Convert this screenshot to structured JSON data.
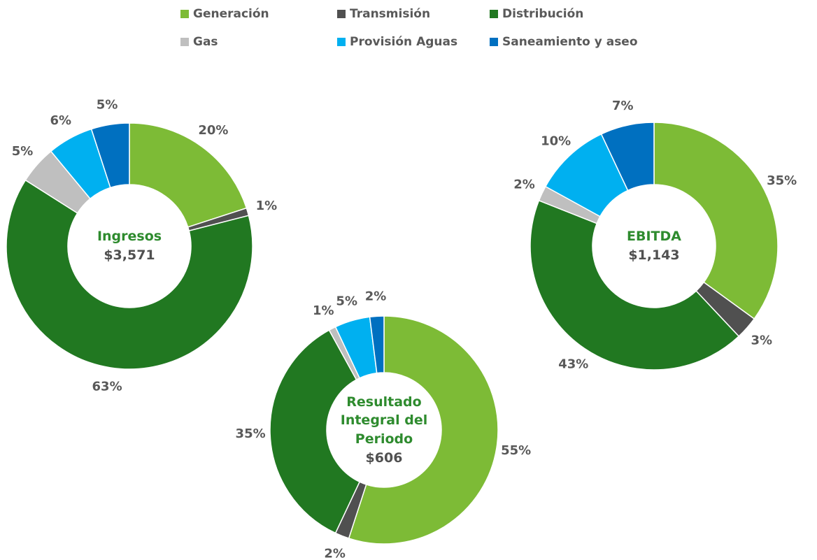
{
  "legend": [
    {
      "name": "Generación",
      "color": "#7dbb36"
    },
    {
      "name": "Transmisión",
      "color": "#505050"
    },
    {
      "name": "Distribución",
      "color": "#217821"
    },
    {
      "name": "Gas",
      "color": "#bfbfbf"
    },
    {
      "name": "Provisión Aguas",
      "color": "#00b0f0"
    },
    {
      "name": "Saneamiento y aseo",
      "color": "#0070c0"
    }
  ],
  "chart_data": [
    {
      "type": "pie",
      "title": "Ingresos",
      "subtitle": "$3,571",
      "values": [
        20,
        1,
        63,
        5,
        6,
        5
      ],
      "value_labels": [
        "20%",
        "1%",
        "63%",
        "5%",
        "6%",
        "5%"
      ]
    },
    {
      "type": "pie",
      "title": "Resultado Integral del Periodo",
      "subtitle": "$606",
      "values": [
        55,
        2,
        35,
        1,
        5,
        2
      ],
      "value_labels": [
        "55%",
        "2%",
        "35%",
        "1%",
        "5%",
        "2%"
      ]
    },
    {
      "type": "pie",
      "title": "EBITDA",
      "subtitle": "$1,143",
      "values": [
        35,
        3,
        43,
        2,
        10,
        7
      ],
      "value_labels": [
        "35%",
        "3%",
        "43%",
        "2%",
        "10%",
        "7%"
      ]
    }
  ]
}
